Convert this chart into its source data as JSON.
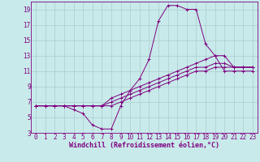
{
  "xlabel": "Windchill (Refroidissement éolien,°C)",
  "bg_color": "#c8eaea",
  "grid_color": "#aacccc",
  "line_color": "#800080",
  "xlim": [
    -0.5,
    23.5
  ],
  "ylim": [
    3,
    20
  ],
  "xticks": [
    0,
    1,
    2,
    3,
    4,
    5,
    6,
    7,
    8,
    9,
    10,
    11,
    12,
    13,
    14,
    15,
    16,
    17,
    18,
    19,
    20,
    21,
    22,
    23
  ],
  "yticks": [
    3,
    5,
    7,
    9,
    11,
    13,
    15,
    17,
    19
  ],
  "series": [
    [
      6.5,
      6.5,
      6.5,
      6.5,
      6.0,
      5.5,
      4.0,
      3.5,
      3.5,
      6.5,
      8.5,
      10.0,
      12.5,
      17.5,
      19.5,
      19.5,
      19.0,
      19.0,
      14.5,
      13.0,
      11.0,
      11.0,
      11.0,
      11.0
    ],
    [
      6.5,
      6.5,
      6.5,
      6.5,
      6.5,
      6.5,
      6.5,
      6.5,
      6.5,
      7.0,
      7.5,
      8.0,
      8.5,
      9.0,
      9.5,
      10.0,
      10.5,
      11.0,
      11.0,
      11.5,
      11.5,
      11.5,
      11.5,
      11.5
    ],
    [
      6.5,
      6.5,
      6.5,
      6.5,
      6.5,
      6.5,
      6.5,
      6.5,
      7.0,
      7.5,
      8.0,
      8.5,
      9.0,
      9.5,
      10.0,
      10.5,
      11.0,
      11.5,
      11.5,
      12.0,
      12.0,
      11.5,
      11.5,
      11.5
    ],
    [
      6.5,
      6.5,
      6.5,
      6.5,
      6.5,
      6.5,
      6.5,
      6.5,
      7.5,
      8.0,
      8.5,
      9.0,
      9.5,
      10.0,
      10.5,
      11.0,
      11.5,
      12.0,
      12.5,
      13.0,
      13.0,
      11.5,
      11.5,
      11.5
    ]
  ],
  "tick_fontsize": 5.5,
  "xlabel_fontsize": 6,
  "marker_size": 2.5,
  "linewidth": 0.7
}
